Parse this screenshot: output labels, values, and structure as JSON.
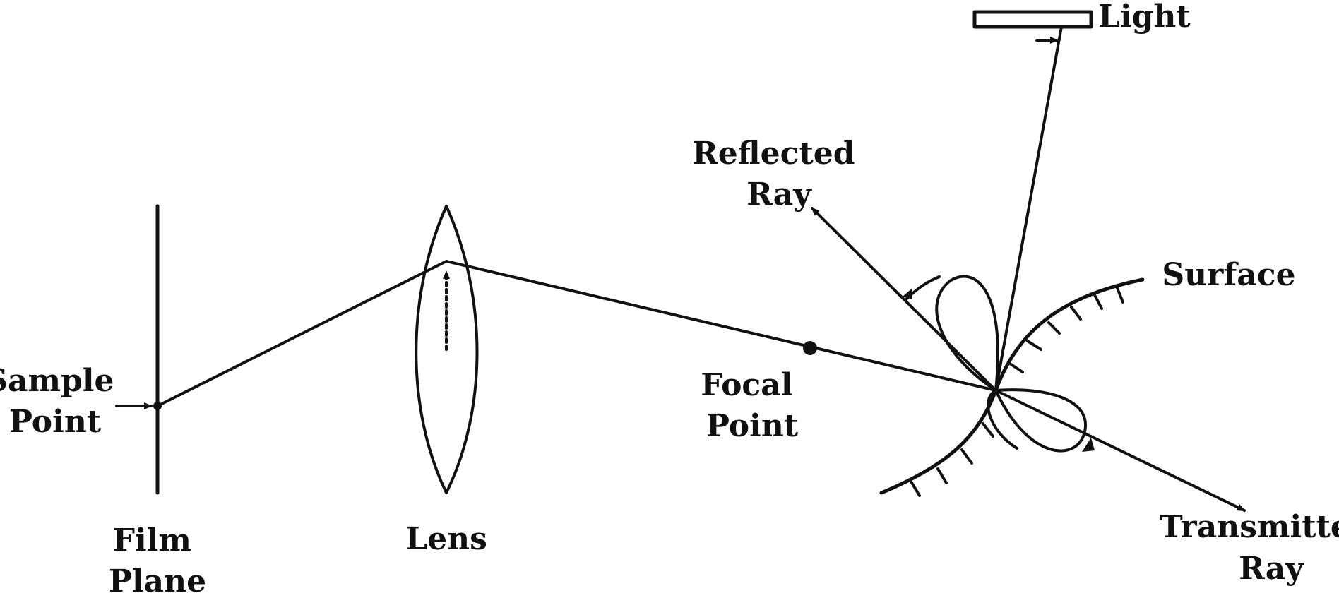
{
  "labels": {
    "sample_point": [
      "Sample",
      "Point"
    ],
    "film_plane": [
      "Film",
      "Plane"
    ],
    "lens": "Lens",
    "focal_point": [
      "Focal",
      "Point"
    ],
    "reflected_ray": [
      "Reflected",
      "Ray"
    ],
    "light": "Light",
    "surface": "Surface",
    "transmitted_ray": [
      "Transmitted",
      "Ray"
    ]
  },
  "colors": {
    "ink": "#111111",
    "background": "#ffffff"
  }
}
